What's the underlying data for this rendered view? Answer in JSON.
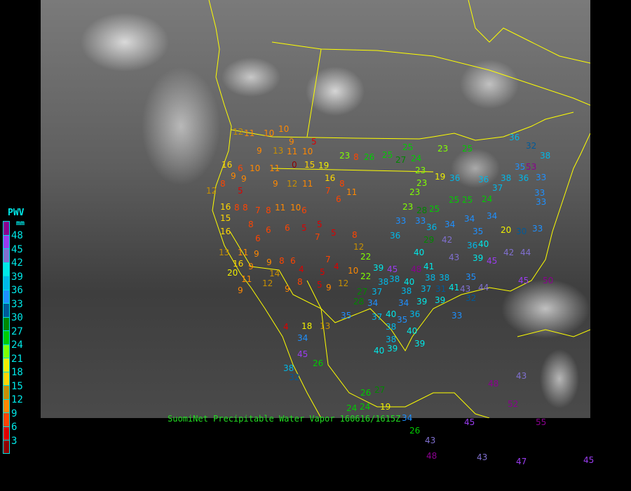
{
  "legend": {
    "title": "PWV",
    "unit": "mm",
    "ticks": [
      "48",
      "45",
      "42",
      "39",
      "36",
      "33",
      "30",
      "27",
      "24",
      "21",
      "18",
      "15",
      "12",
      "9",
      "6",
      "3"
    ],
    "bin_colors": [
      "#8b0090",
      "#9a3cf0",
      "#8070d0",
      "#00e8e8",
      "#00b8e8",
      "#1e90ff",
      "#005a9a",
      "#008800",
      "#00cc00",
      "#80ff00",
      "#f0f000",
      "#ffd800",
      "#c89000",
      "#ff8800",
      "#ff4400",
      "#dd0000",
      "#900000"
    ]
  },
  "caption": "SuomiNet Precipitable Water Vapor 160616/1615Z",
  "colors": {
    "border_lines": "#ffff00",
    "background": "#000000"
  },
  "stations": [
    "9",
    "11",
    "10",
    "5",
    "23",
    "8",
    "26",
    "25",
    "25",
    "27",
    "24",
    "23",
    "25",
    "23",
    "19",
    "23",
    "23",
    "36",
    "36",
    "38",
    "36",
    "33",
    "33",
    "37",
    "25",
    "24",
    "25",
    "23",
    "28",
    "25",
    "33",
    "33",
    "36",
    "34",
    "34",
    "35",
    "34",
    "20",
    "30",
    "33",
    "36",
    "40",
    "29",
    "42",
    "40",
    "36",
    "39",
    "45",
    "42",
    "44",
    "43",
    "41",
    "48",
    "45",
    "39",
    "38",
    "38",
    "40",
    "38",
    "38",
    "35",
    "38",
    "37",
    "31",
    "41",
    "43",
    "39",
    "39",
    "34",
    "34",
    "28",
    "27",
    "22",
    "22",
    "12",
    "10",
    "12",
    "4",
    "5",
    "7",
    "4",
    "8",
    "9",
    "5",
    "9",
    "6",
    "8",
    "9",
    "14",
    "12",
    "9",
    "16",
    "11",
    "9",
    "9",
    "6",
    "6",
    "5",
    "5",
    "7",
    "5",
    "8",
    "6",
    "7",
    "8",
    "11",
    "11",
    "12",
    "9",
    "5",
    "8",
    "12",
    "16",
    "8",
    "8",
    "7",
    "8",
    "11",
    "10",
    "6",
    "8",
    "6",
    "15",
    "16",
    "20",
    "11",
    "13",
    "0",
    "15",
    "19",
    "16",
    "11",
    "10",
    "6",
    "16",
    "9",
    "9",
    "9",
    "13",
    "10",
    "10",
    "12",
    "11",
    "4",
    "18",
    "13",
    "45",
    "34",
    "38",
    "32",
    "35",
    "37",
    "40",
    "38",
    "35",
    "36",
    "40",
    "38",
    "39",
    "39",
    "40",
    "33",
    "32",
    "44",
    "45",
    "50",
    "26",
    "26",
    "27",
    "37",
    "24",
    "24",
    "19",
    "34",
    "26",
    "43",
    "48",
    "45",
    "43",
    "47",
    "48",
    "43",
    "52",
    "55",
    "45",
    "36",
    "32",
    "38",
    "35",
    "53",
    "33"
  ]
}
